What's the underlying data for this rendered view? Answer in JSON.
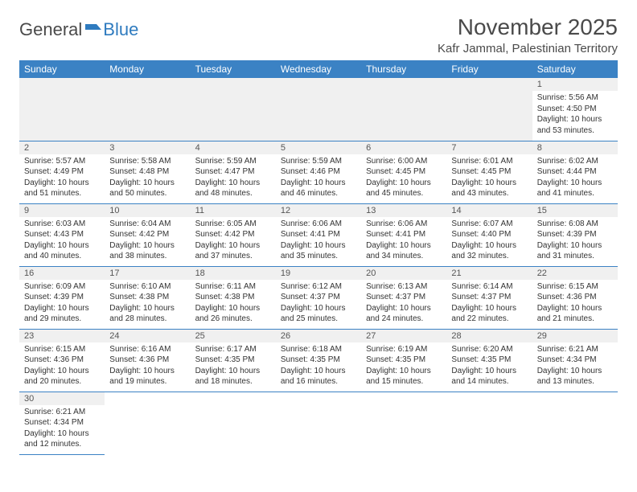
{
  "brand": {
    "part1": "General",
    "part2": "Blue"
  },
  "title": "November 2025",
  "location": "Kafr Jammal, Palestinian Territory",
  "colors": {
    "header_bg": "#3b82c4",
    "header_text": "#ffffff",
    "cell_border": "#3b82c4",
    "daynum_bg": "#f0f0f0",
    "text": "#333333"
  },
  "weekdays": [
    "Sunday",
    "Monday",
    "Tuesday",
    "Wednesday",
    "Thursday",
    "Friday",
    "Saturday"
  ],
  "days": {
    "1": {
      "sunrise": "5:56 AM",
      "sunset": "4:50 PM",
      "daylight": "10 hours and 53 minutes."
    },
    "2": {
      "sunrise": "5:57 AM",
      "sunset": "4:49 PM",
      "daylight": "10 hours and 51 minutes."
    },
    "3": {
      "sunrise": "5:58 AM",
      "sunset": "4:48 PM",
      "daylight": "10 hours and 50 minutes."
    },
    "4": {
      "sunrise": "5:59 AM",
      "sunset": "4:47 PM",
      "daylight": "10 hours and 48 minutes."
    },
    "5": {
      "sunrise": "5:59 AM",
      "sunset": "4:46 PM",
      "daylight": "10 hours and 46 minutes."
    },
    "6": {
      "sunrise": "6:00 AM",
      "sunset": "4:45 PM",
      "daylight": "10 hours and 45 minutes."
    },
    "7": {
      "sunrise": "6:01 AM",
      "sunset": "4:45 PM",
      "daylight": "10 hours and 43 minutes."
    },
    "8": {
      "sunrise": "6:02 AM",
      "sunset": "4:44 PM",
      "daylight": "10 hours and 41 minutes."
    },
    "9": {
      "sunrise": "6:03 AM",
      "sunset": "4:43 PM",
      "daylight": "10 hours and 40 minutes."
    },
    "10": {
      "sunrise": "6:04 AM",
      "sunset": "4:42 PM",
      "daylight": "10 hours and 38 minutes."
    },
    "11": {
      "sunrise": "6:05 AM",
      "sunset": "4:42 PM",
      "daylight": "10 hours and 37 minutes."
    },
    "12": {
      "sunrise": "6:06 AM",
      "sunset": "4:41 PM",
      "daylight": "10 hours and 35 minutes."
    },
    "13": {
      "sunrise": "6:06 AM",
      "sunset": "4:41 PM",
      "daylight": "10 hours and 34 minutes."
    },
    "14": {
      "sunrise": "6:07 AM",
      "sunset": "4:40 PM",
      "daylight": "10 hours and 32 minutes."
    },
    "15": {
      "sunrise": "6:08 AM",
      "sunset": "4:39 PM",
      "daylight": "10 hours and 31 minutes."
    },
    "16": {
      "sunrise": "6:09 AM",
      "sunset": "4:39 PM",
      "daylight": "10 hours and 29 minutes."
    },
    "17": {
      "sunrise": "6:10 AM",
      "sunset": "4:38 PM",
      "daylight": "10 hours and 28 minutes."
    },
    "18": {
      "sunrise": "6:11 AM",
      "sunset": "4:38 PM",
      "daylight": "10 hours and 26 minutes."
    },
    "19": {
      "sunrise": "6:12 AM",
      "sunset": "4:37 PM",
      "daylight": "10 hours and 25 minutes."
    },
    "20": {
      "sunrise": "6:13 AM",
      "sunset": "4:37 PM",
      "daylight": "10 hours and 24 minutes."
    },
    "21": {
      "sunrise": "6:14 AM",
      "sunset": "4:37 PM",
      "daylight": "10 hours and 22 minutes."
    },
    "22": {
      "sunrise": "6:15 AM",
      "sunset": "4:36 PM",
      "daylight": "10 hours and 21 minutes."
    },
    "23": {
      "sunrise": "6:15 AM",
      "sunset": "4:36 PM",
      "daylight": "10 hours and 20 minutes."
    },
    "24": {
      "sunrise": "6:16 AM",
      "sunset": "4:36 PM",
      "daylight": "10 hours and 19 minutes."
    },
    "25": {
      "sunrise": "6:17 AM",
      "sunset": "4:35 PM",
      "daylight": "10 hours and 18 minutes."
    },
    "26": {
      "sunrise": "6:18 AM",
      "sunset": "4:35 PM",
      "daylight": "10 hours and 16 minutes."
    },
    "27": {
      "sunrise": "6:19 AM",
      "sunset": "4:35 PM",
      "daylight": "10 hours and 15 minutes."
    },
    "28": {
      "sunrise": "6:20 AM",
      "sunset": "4:35 PM",
      "daylight": "10 hours and 14 minutes."
    },
    "29": {
      "sunrise": "6:21 AM",
      "sunset": "4:34 PM",
      "daylight": "10 hours and 13 minutes."
    },
    "30": {
      "sunrise": "6:21 AM",
      "sunset": "4:34 PM",
      "daylight": "10 hours and 12 minutes."
    }
  },
  "labels": {
    "sunrise_prefix": "Sunrise: ",
    "sunset_prefix": "Sunset: ",
    "daylight_prefix": "Daylight: "
  },
  "layout": {
    "first_weekday_index": 6,
    "days_in_month": 30
  }
}
